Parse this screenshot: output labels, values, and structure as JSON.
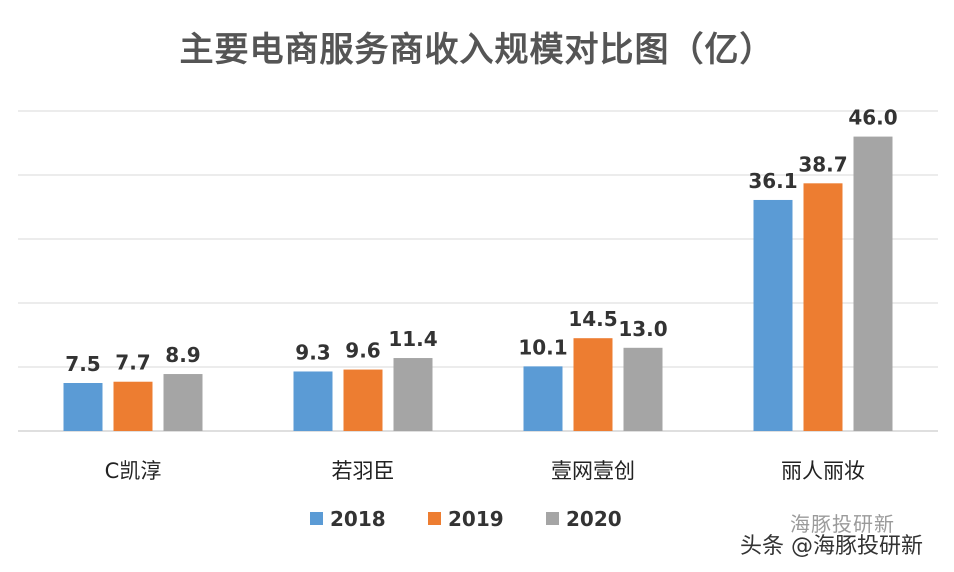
{
  "chart_data": {
    "type": "bar",
    "title": "主要电商服务商收入规模对比图（亿）",
    "categories": [
      "C凯淳",
      "若羽臣",
      "壹网壹创",
      "丽人丽妆"
    ],
    "series": [
      {
        "name": "2018",
        "color": "#5B9BD5",
        "values": [
          7.5,
          9.3,
          10.1,
          36.1
        ],
        "labels": [
          "7.5",
          "9.3",
          "10.1",
          "36.1"
        ]
      },
      {
        "name": "2019",
        "color": "#ED7D31",
        "values": [
          7.7,
          9.6,
          14.5,
          38.7
        ],
        "labels": [
          "7.7",
          "9.6",
          "14.5",
          "38.7"
        ]
      },
      {
        "name": "2020",
        "color": "#A5A5A5",
        "values": [
          8.9,
          11.4,
          13.0,
          46.0
        ],
        "labels": [
          "8.9",
          "11.4",
          "13.0",
          "46.0"
        ]
      }
    ],
    "ylim": [
      0,
      50
    ],
    "grid": true,
    "legend": "bottom",
    "xlabel": "",
    "ylabel": ""
  },
  "watermark": "头条 @海豚投研新",
  "watermark_ghost": "海豚投研新"
}
